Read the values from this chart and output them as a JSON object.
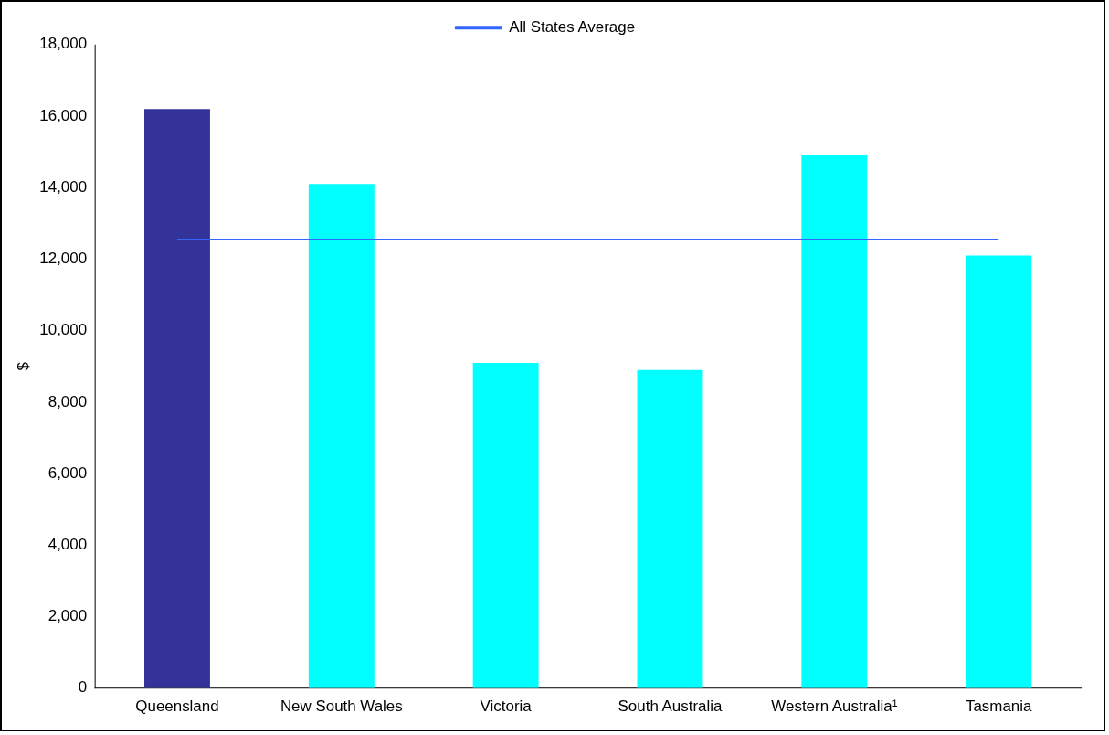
{
  "chart_data": {
    "type": "bar",
    "ylabel": "$",
    "categories": [
      "Queensland",
      "New South Wales",
      "Victoria",
      "South Australia",
      "Western Australia¹",
      "Tasmania"
    ],
    "series": [
      {
        "colors": [
          "#333399",
          "#00ffff",
          "#00ffff",
          "#00ffff",
          "#00ffff",
          "#00ffff"
        ],
        "values": [
          16200,
          14100,
          9100,
          8900,
          14900,
          12100
        ]
      },
      {
        "type": "line",
        "name": "All States Average",
        "color": "#3366ff",
        "values": [
          12550,
          12550,
          12550,
          12550,
          12550,
          12550
        ]
      }
    ],
    "ylim": [
      0,
      18000
    ],
    "yticks": [
      {
        "value": 0,
        "label": "0"
      },
      {
        "value": 2000,
        "label": "2,000"
      },
      {
        "value": 4000,
        "label": "4,000"
      },
      {
        "value": 6000,
        "label": "6,000"
      },
      {
        "value": 8000,
        "label": "8,000"
      },
      {
        "value": 10000,
        "label": "10,000"
      },
      {
        "value": 12000,
        "label": "12,000"
      },
      {
        "value": 14000,
        "label": "14,000"
      },
      {
        "value": 16000,
        "label": "16,000"
      },
      {
        "value": 18000,
        "label": "18,000"
      }
    ],
    "grid": false,
    "legend": "top",
    "marker": "none"
  }
}
